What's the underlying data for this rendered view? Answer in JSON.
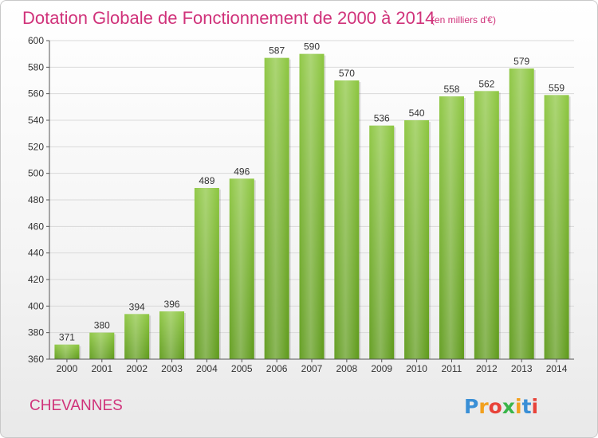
{
  "chart_data": {
    "type": "bar",
    "title": "Dotation Globale de Fonctionnement de 2000 à 2014",
    "subtitle": "(en milliers d'€)",
    "categories": [
      "2000",
      "2001",
      "2002",
      "2003",
      "2004",
      "2005",
      "2006",
      "2007",
      "2008",
      "2009",
      "2010",
      "2011",
      "2012",
      "2013",
      "2014"
    ],
    "values": [
      371,
      380,
      394,
      396,
      489,
      496,
      587,
      590,
      570,
      536,
      540,
      558,
      562,
      579,
      559
    ],
    "ylim": [
      360,
      600
    ],
    "yticks": [
      "360",
      "380",
      "400",
      "420",
      "440",
      "460",
      "480",
      "500",
      "520",
      "540",
      "560",
      "580",
      "600"
    ],
    "grid": true,
    "bar_color": "#8cc63f",
    "bar_color_dark": "#5e9a1a"
  },
  "commune": "CHEVANNES",
  "logo": {
    "letters": [
      "P",
      "r",
      "o",
      "x",
      "i",
      "t",
      "i"
    ],
    "colors": [
      "#3a8fd6",
      "#f2a01e",
      "#e8433a",
      "#3ab54a",
      "#f2a01e",
      "#3a8fd6",
      "#e8433a"
    ]
  }
}
